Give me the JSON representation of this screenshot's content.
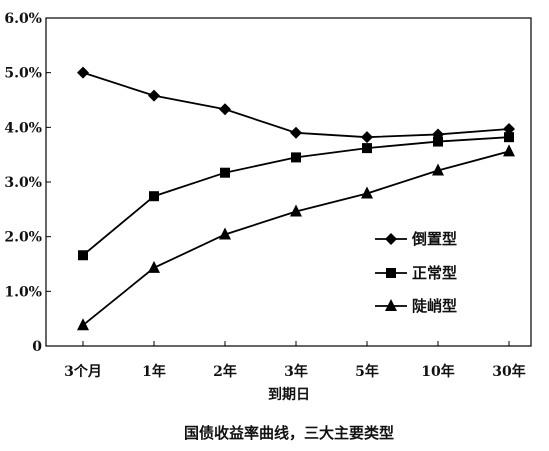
{
  "chart_data": {
    "type": "line",
    "categories": [
      "3个月",
      "1年",
      "2年",
      "3年",
      "5年",
      "10年",
      "30年"
    ],
    "series": [
      {
        "name": "倒置型",
        "marker": "diamond",
        "values": [
          5.0,
          4.58,
          4.33,
          3.9,
          3.82,
          3.87,
          3.97
        ]
      },
      {
        "name": "正常型",
        "marker": "square",
        "values": [
          1.66,
          2.74,
          3.17,
          3.45,
          3.62,
          3.74,
          3.82
        ]
      },
      {
        "name": "陡峭型",
        "marker": "triangle",
        "values": [
          0.38,
          1.43,
          2.04,
          2.46,
          2.79,
          3.21,
          3.56
        ]
      }
    ],
    "y_ticks": [
      "0",
      "1.0%",
      "2.0%",
      "3.0%",
      "4.0%",
      "5.0%",
      "6.0%"
    ],
    "ylim": [
      0,
      6
    ],
    "xlabel": "到期日",
    "ylabel": "",
    "title": "",
    "caption": "国债收益率曲线，三大主要类型",
    "legend_position": "lower-right",
    "grid": false,
    "line_color": "#000000"
  }
}
